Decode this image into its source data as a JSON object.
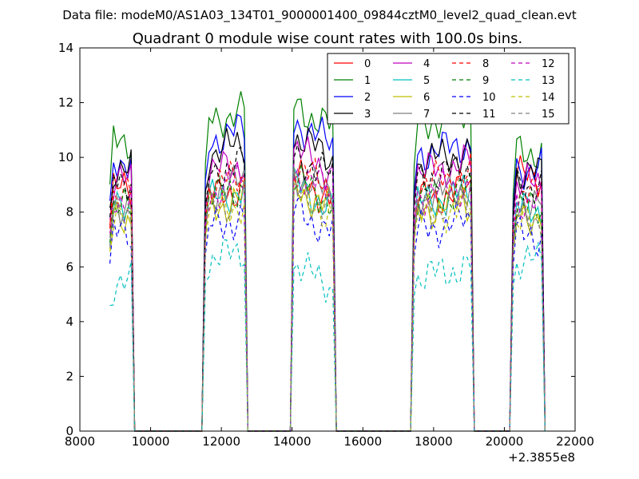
{
  "chart_data": {
    "type": "line",
    "suptitle": "Data file: modeM0/AS1A03_134T01_9000001400_09844cztM0_level2_quad_clean.evt",
    "title": "Quadrant 0 module wise count rates with 100.0s bins.",
    "xlabel": "",
    "ylabel": "",
    "x_offset_label": "+2.3855e8",
    "xlim": [
      8000,
      22000
    ],
    "ylim": [
      0,
      14
    ],
    "x_ticks": [
      "8000",
      "10000",
      "12000",
      "14000",
      "16000",
      "18000",
      "20000",
      "22000"
    ],
    "y_ticks": [
      "0",
      "2",
      "4",
      "6",
      "8",
      "10",
      "12",
      "14"
    ],
    "grid": false,
    "legend_position": "top-right",
    "bins_s": 100.0,
    "segments": [
      {
        "start": 8850,
        "end": 9450
      },
      {
        "start": 11550,
        "end": 12650
      },
      {
        "start": 14000,
        "end": 15150
      },
      {
        "start": 17450,
        "end": 19050
      },
      {
        "start": 20250,
        "end": 21050
      }
    ],
    "series": [
      {
        "name": "0",
        "color": "#ff0000",
        "style": "solid",
        "levels": [
          8.8,
          8.7,
          9.0,
          8.6,
          9.3
        ]
      },
      {
        "name": "1",
        "color": "#008000",
        "style": "solid",
        "levels": [
          10.6,
          11.5,
          11.6,
          11.4,
          10.2
        ]
      },
      {
        "name": "2",
        "color": "#0000ff",
        "style": "solid",
        "levels": [
          9.9,
          10.8,
          11.0,
          10.3,
          9.6
        ]
      },
      {
        "name": "3",
        "color": "#000000",
        "style": "solid",
        "levels": [
          9.6,
          10.3,
          10.5,
          10.0,
          9.4
        ]
      },
      {
        "name": "4",
        "color": "#bf00bf",
        "style": "solid",
        "levels": [
          9.1,
          9.6,
          10.0,
          9.6,
          9.0
        ]
      },
      {
        "name": "5",
        "color": "#00bfbf",
        "style": "solid",
        "levels": [
          8.0,
          8.6,
          8.7,
          8.5,
          8.1
        ]
      },
      {
        "name": "6",
        "color": "#bfbf00",
        "style": "solid",
        "levels": [
          7.8,
          8.3,
          8.6,
          8.2,
          7.9
        ]
      },
      {
        "name": "7",
        "color": "#808080",
        "style": "solid",
        "levels": [
          8.3,
          8.9,
          9.1,
          8.7,
          8.3
        ]
      },
      {
        "name": "8",
        "color": "#ff0000",
        "style": "dashed",
        "levels": [
          8.7,
          9.1,
          9.4,
          9.2,
          8.7
        ]
      },
      {
        "name": "9",
        "color": "#008000",
        "style": "dashed",
        "levels": [
          8.1,
          8.7,
          8.9,
          8.6,
          8.1
        ]
      },
      {
        "name": "10",
        "color": "#0000ff",
        "style": "dashed",
        "levels": [
          7.2,
          7.6,
          7.8,
          7.5,
          7.1
        ]
      },
      {
        "name": "11",
        "color": "#000000",
        "style": "dashed",
        "levels": [
          9.2,
          9.6,
          9.8,
          9.4,
          9.0
        ]
      },
      {
        "name": "12",
        "color": "#bf00bf",
        "style": "dashed",
        "levels": [
          8.5,
          8.9,
          9.2,
          8.8,
          8.4
        ]
      },
      {
        "name": "13",
        "color": "#00bfbf",
        "style": "dashed",
        "levels": [
          5.4,
          6.4,
          5.8,
          5.8,
          6.2
        ]
      },
      {
        "name": "14",
        "color": "#bfbf00",
        "style": "dashed",
        "levels": [
          7.7,
          8.1,
          8.4,
          8.0,
          7.6
        ]
      },
      {
        "name": "15",
        "color": "#808080",
        "style": "dashed",
        "levels": [
          7.9,
          8.3,
          8.6,
          8.2,
          7.8
        ]
      }
    ]
  }
}
